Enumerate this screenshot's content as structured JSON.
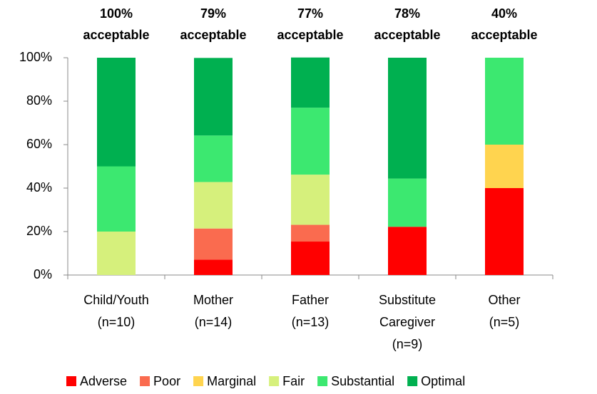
{
  "chart_data": {
    "type": "stacked_bar",
    "categories": [
      [
        "Child/Youth",
        "(n=10)"
      ],
      [
        "Mother",
        "(n=14)"
      ],
      [
        "Father",
        "(n=13)"
      ],
      [
        "Substitute",
        "Caregiver",
        "(n=9)"
      ],
      [
        "Other",
        "(n=5)"
      ]
    ],
    "annotations": [
      [
        "100%",
        "acceptable"
      ],
      [
        "79%",
        "acceptable"
      ],
      [
        "77%",
        "acceptable"
      ],
      [
        "78%",
        "acceptable"
      ],
      [
        "40%",
        "acceptable"
      ]
    ],
    "series": [
      {
        "name": "Adverse",
        "color": "#ff0000",
        "values": [
          0,
          7.1,
          15.4,
          22.2,
          40
        ]
      },
      {
        "name": "Poor",
        "color": "#fa6b4f",
        "values": [
          0,
          14.3,
          7.7,
          0,
          0
        ]
      },
      {
        "name": "Marginal",
        "color": "#ffd44f",
        "values": [
          0,
          0,
          0,
          0,
          20
        ]
      },
      {
        "name": "Fair",
        "color": "#d6f07c",
        "values": [
          20,
          21.4,
          23.1,
          0,
          0
        ]
      },
      {
        "name": "Substantial",
        "color": "#3ce870",
        "values": [
          30,
          21.4,
          30.8,
          22.2,
          40
        ]
      },
      {
        "name": "Optimal",
        "color": "#00b050",
        "values": [
          50,
          35.7,
          23.1,
          55.6,
          0
        ]
      }
    ],
    "ylim": [
      0,
      100
    ],
    "yticks": [
      {
        "value": 0,
        "label": "0%"
      },
      {
        "value": 20,
        "label": "20%"
      },
      {
        "value": 40,
        "label": "40%"
      },
      {
        "value": 60,
        "label": "60%"
      },
      {
        "value": 80,
        "label": "80%"
      },
      {
        "value": 100,
        "label": "100%"
      }
    ],
    "legend": "bottom"
  }
}
